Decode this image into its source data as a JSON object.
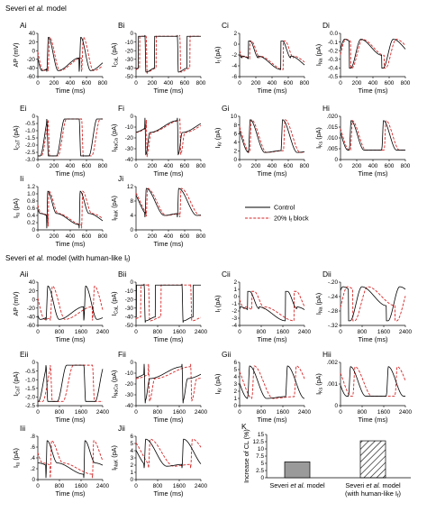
{
  "sections": [
    {
      "text": "Severi et al. model"
    },
    {
      "text": "Severi et al. model (with human-like If)"
    }
  ],
  "legend": [
    {
      "label": "Control",
      "color": "#000000",
      "dash": false
    },
    {
      "label": "20% If block",
      "color": "#d62728",
      "dash": true
    }
  ],
  "colors": {
    "control": "#000000",
    "block": "#d62728",
    "bar_fill": "#9a9a9a"
  },
  "chart_data": [
    {
      "id": "Ai",
      "type": "line",
      "section": 0,
      "ylabel": "AP (mV)",
      "xlabel": "Time (ms)",
      "xlim": [
        0,
        800
      ],
      "xticks": [
        "0",
        "200",
        "400",
        "600",
        "800"
      ],
      "ylim": [
        -70,
        40
      ],
      "yticks": [
        "40",
        "20",
        "0",
        "-20",
        "-40",
        "-60"
      ],
      "shape": "ap",
      "period": 400,
      "t0": 110,
      "lo": -62,
      "hi": 30,
      "shift": 15
    },
    {
      "id": "Bi",
      "type": "line",
      "section": 0,
      "ylabel": "I_CaL (pA)",
      "xlabel": "Time (ms)",
      "xlim": [
        0,
        800
      ],
      "xticks": [
        "0",
        "200",
        "400",
        "600",
        "800"
      ],
      "ylim": [
        -50,
        0
      ],
      "yticks": [
        "0",
        "-10",
        "-20",
        "-30",
        "-40",
        "-50"
      ],
      "shape": "ical",
      "period": 400,
      "t0": 110,
      "lo": -47,
      "hi": -2,
      "shift": 15
    },
    {
      "id": "Ci",
      "type": "line",
      "section": 0,
      "ylabel": "I_f (pA)",
      "xlabel": "Time (ms)",
      "xlim": [
        0,
        800
      ],
      "xticks": [
        "0",
        "200",
        "400",
        "600",
        "800"
      ],
      "ylim": [
        -6,
        2
      ],
      "yticks": [
        "2",
        "0",
        "-2",
        "-4",
        "-6"
      ],
      "shape": "if",
      "period": 400,
      "t0": 110,
      "lo": -5,
      "hi": 1.2,
      "shift": 15
    },
    {
      "id": "Di",
      "type": "line",
      "section": 0,
      "ylabel": "I_Na (pA)",
      "xlabel": "Time (ms)",
      "xlim": [
        0,
        800
      ],
      "xticks": [
        "0",
        "200",
        "400",
        "600",
        "800"
      ],
      "ylim": [
        -0.5,
        0
      ],
      "yticks": [
        "0.0",
        "-0.1",
        "-0.2",
        "-0.3",
        "-0.4",
        "-0.5"
      ],
      "shape": "ina",
      "period": 400,
      "t0": 110,
      "lo": -0.42,
      "hi": -0.05,
      "shift": 15
    },
    {
      "id": "Ei",
      "type": "line",
      "section": 0,
      "ylabel": "I_CaT (pA)",
      "xlabel": "Time (ms)",
      "xlim": [
        0,
        800
      ],
      "xticks": [
        "0",
        "200",
        "400",
        "600",
        "800"
      ],
      "ylim": [
        -3,
        0
      ],
      "yticks": [
        "0",
        "-0.5",
        "-1.0",
        "-1.5",
        "-2.0",
        "-2.5",
        "-3.0"
      ],
      "shape": "icat",
      "period": 400,
      "t0": 110,
      "lo": -2.8,
      "hi": -0.05,
      "shift": 15
    },
    {
      "id": "Fi",
      "type": "line",
      "section": 0,
      "ylabel": "I_NaCa (pA)",
      "xlabel": "Time (ms)",
      "xlim": [
        0,
        800
      ],
      "xticks": [
        "0",
        "200",
        "400",
        "600",
        "800"
      ],
      "ylim": [
        -40,
        1
      ],
      "yticks": [
        "0",
        "-10",
        "-20",
        "-30",
        "-40"
      ],
      "shape": "inaca",
      "period": 400,
      "t0": 110,
      "lo": -38,
      "hi": -0.5,
      "shift": 15
    },
    {
      "id": "Gi",
      "type": "line",
      "section": 0,
      "ylabel": "I_Kr (pA)",
      "xlabel": "Time (ms)",
      "xlim": [
        0,
        800
      ],
      "xticks": [
        "0",
        "200",
        "400",
        "600",
        "800"
      ],
      "ylim": [
        0,
        10
      ],
      "yticks": [
        "10",
        "8",
        "6",
        "4",
        "2",
        "0"
      ],
      "shape": "ikr",
      "period": 400,
      "t0": 110,
      "lo": 0.8,
      "hi": 9.2,
      "shift": 15
    },
    {
      "id": "Hi",
      "type": "line",
      "section": 0,
      "ylabel": "I_Ks (pA)",
      "xlabel": "Time (ms)",
      "xlim": [
        0,
        800
      ],
      "xticks": [
        "0",
        "200",
        "400",
        "600",
        "800"
      ],
      "ylim": [
        0,
        0.02
      ],
      "yticks": [
        ".020",
        ".015",
        ".010",
        ".005",
        "0"
      ],
      "shape": "iks",
      "period": 400,
      "t0": 110,
      "lo": 0.002,
      "hi": 0.018,
      "shift": 15
    },
    {
      "id": "Ii",
      "type": "line",
      "section": 0,
      "ylabel": "I_to (pA)",
      "xlabel": "Time (ms)",
      "xlim": [
        0,
        800
      ],
      "xticks": [
        "0",
        "200",
        "400",
        "600",
        "800"
      ],
      "ylim": [
        0,
        1.4
      ],
      "yticks": [
        "1.2",
        "1.0",
        "0.8",
        "0.6",
        "0.4",
        "0.2",
        "0"
      ],
      "shape": "ito",
      "period": 400,
      "t0": 110,
      "lo": 0.05,
      "hi": 1.25,
      "shift": 15
    },
    {
      "id": "Ji",
      "type": "line",
      "section": 0,
      "ylabel": "I_NaK (pA)",
      "xlabel": "Time (ms)",
      "xlim": [
        0,
        800
      ],
      "xticks": [
        "0",
        "200",
        "400",
        "600",
        "800"
      ],
      "ylim": [
        0,
        12
      ],
      "yticks": [
        "12",
        "8",
        "4",
        "0"
      ],
      "shape": "inak",
      "period": 400,
      "t0": 110,
      "lo": 1.5,
      "hi": 11.5,
      "shift": 15
    },
    {
      "id": "Aii",
      "type": "line",
      "section": 1,
      "ylabel": "AP (mV)",
      "xlabel": "Time (ms)",
      "xlim": [
        0,
        2400
      ],
      "xticks": [
        "0",
        "800",
        "1600",
        "2400"
      ],
      "ylim": [
        -70,
        40
      ],
      "yticks": [
        "40",
        "20",
        "0",
        "-20",
        "-40",
        "-60"
      ],
      "shape": "ap",
      "period": 1400,
      "t0": 300,
      "lo": -62,
      "hi": 30,
      "shift": 160
    },
    {
      "id": "Bii",
      "type": "line",
      "section": 1,
      "ylabel": "I_CaL (pA)",
      "xlabel": "Time (ms)",
      "xlim": [
        0,
        2400
      ],
      "xticks": [
        "0",
        "800",
        "1600",
        "2400"
      ],
      "ylim": [
        -50,
        0
      ],
      "yticks": [
        "0",
        "-10",
        "-20",
        "-30",
        "-40",
        "-50"
      ],
      "shape": "ical",
      "period": 1400,
      "t0": 300,
      "lo": -47,
      "hi": -2,
      "shift": 160
    },
    {
      "id": "Cii",
      "type": "line",
      "section": 1,
      "ylabel": "I_f (pA)",
      "xlabel": "Time (ms)",
      "xlim": [
        0,
        2400
      ],
      "xticks": [
        "0",
        "800",
        "1600",
        "2400"
      ],
      "ylim": [
        -4,
        2
      ],
      "yticks": [
        "2",
        "1",
        "0",
        "-1",
        "-2",
        "-3",
        "-4"
      ],
      "shape": "if",
      "period": 1400,
      "t0": 300,
      "lo": -3.6,
      "hi": 1.2,
      "shift": 160
    },
    {
      "id": "Dii",
      "type": "line",
      "section": 1,
      "ylabel": "I_Na (pA)",
      "xlabel": "Time (ms)",
      "xlim": [
        0,
        2400
      ],
      "xticks": [
        "0",
        "800",
        "1600",
        "2400"
      ],
      "ylim": [
        -0.34,
        -0.18
      ],
      "yticks": [
        "-.20",
        "-.24",
        "-.28",
        "-.32"
      ],
      "shape": "ina",
      "period": 1400,
      "t0": 300,
      "lo": -0.33,
      "hi": -0.19,
      "shift": 160
    },
    {
      "id": "Eii",
      "type": "line",
      "section": 1,
      "ylabel": "I_CaT (pA)",
      "xlabel": "Time (ms)",
      "xlim": [
        0,
        2400
      ],
      "xticks": [
        "0",
        "800",
        "1600",
        "2400"
      ],
      "ylim": [
        -2.5,
        0
      ],
      "yticks": [
        "0",
        "-0.5",
        "-1.0",
        "-1.5",
        "-2.0",
        "-2.5"
      ],
      "shape": "icat",
      "period": 1400,
      "t0": 300,
      "lo": -2.3,
      "hi": -0.05,
      "shift": 160
    },
    {
      "id": "Fii",
      "type": "line",
      "section": 1,
      "ylabel": "I_NaCa (pA)",
      "xlabel": "Time (ms)",
      "xlim": [
        0,
        2400
      ],
      "xticks": [
        "0",
        "800",
        "1600",
        "2400"
      ],
      "ylim": [
        -40,
        1
      ],
      "yticks": [
        "0",
        "-10",
        "-20",
        "-30",
        "-40"
      ],
      "shape": "inaca",
      "period": 1400,
      "t0": 300,
      "lo": -38,
      "hi": -0.5,
      "shift": 160
    },
    {
      "id": "Gii",
      "type": "line",
      "section": 1,
      "ylabel": "I_Kr (pA)",
      "xlabel": "Time (ms)",
      "xlim": [
        0,
        2400
      ],
      "xticks": [
        "0",
        "800",
        "1600",
        "2400"
      ],
      "ylim": [
        0,
        6
      ],
      "yticks": [
        "6",
        "5",
        "4",
        "3",
        "2",
        "1",
        "0"
      ],
      "shape": "ikr",
      "period": 1400,
      "t0": 300,
      "lo": 0.5,
      "hi": 5.5,
      "shift": 160
    },
    {
      "id": "Hii",
      "type": "line",
      "section": 1,
      "ylabel": "I_Ks (pA)",
      "xlabel": "Time (ms)",
      "xlim": [
        0,
        2400
      ],
      "xticks": [
        "0",
        "800",
        "1600",
        "2400"
      ],
      "ylim": [
        0,
        0.002
      ],
      "yticks": [
        ".002",
        ".001",
        "0"
      ],
      "shape": "iks",
      "period": 1400,
      "t0": 300,
      "lo": 0.0002,
      "hi": 0.0018,
      "shift": 160
    },
    {
      "id": "Iii",
      "type": "line",
      "section": 1,
      "ylabel": "I_to (pA)",
      "xlabel": "Time (ms)",
      "xlim": [
        0,
        2400
      ],
      "xticks": [
        "0",
        "800",
        "1600",
        "2400"
      ],
      "ylim": [
        0,
        0.8
      ],
      "yticks": [
        ".8",
        ".6",
        ".4",
        ".2",
        "0"
      ],
      "shape": "ito",
      "period": 1400,
      "t0": 300,
      "lo": 0.03,
      "hi": 0.72,
      "shift": 160
    },
    {
      "id": "Jii",
      "type": "line",
      "section": 1,
      "ylabel": "I_NaK (pA)",
      "xlabel": "Time (ms)",
      "xlim": [
        0,
        2400
      ],
      "xticks": [
        "0",
        "800",
        "1600",
        "2400"
      ],
      "ylim": [
        0,
        6
      ],
      "yticks": [
        "6",
        "5",
        "4",
        "3",
        "2",
        "1",
        "0"
      ],
      "shape": "inak",
      "period": 1400,
      "t0": 300,
      "lo": 0.6,
      "hi": 5.6,
      "shift": 160
    },
    {
      "id": "K",
      "type": "bar",
      "section": 1,
      "ylabel": "Increase of CL (%)",
      "categories": [
        "Severi et al. model",
        "Severi et al. model (with human-like If)"
      ],
      "values": [
        5.5,
        12.8
      ],
      "hatch": [
        false,
        true
      ],
      "ylim": [
        0,
        15
      ],
      "yticks": [
        "15",
        "12.5",
        "10",
        "7.5",
        "5",
        "2.5",
        "0"
      ]
    }
  ]
}
